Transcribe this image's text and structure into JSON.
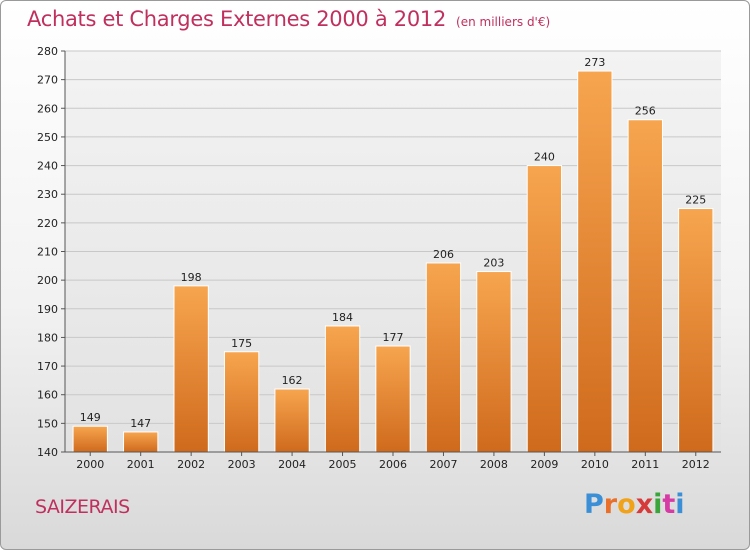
{
  "header": {
    "title": "Achats et Charges Externes 2000 à 2012",
    "subtitle": "(en milliers d'€)"
  },
  "footer": {
    "city": "SAIZERAIS",
    "logo": {
      "letters": [
        "P",
        "r",
        "o",
        "x",
        "i",
        "t",
        "i"
      ],
      "colors": [
        "#3a8fd6",
        "#e8702a",
        "#f0a21a",
        "#d63a3a",
        "#3aa53a",
        "#d63aa5",
        "#3a8fd6"
      ]
    }
  },
  "chart_data": {
    "type": "bar",
    "categories": [
      "2000",
      "2001",
      "2002",
      "2003",
      "2004",
      "2005",
      "2006",
      "2007",
      "2008",
      "2009",
      "2010",
      "2011",
      "2012"
    ],
    "values": [
      149,
      147,
      198,
      175,
      162,
      184,
      177,
      206,
      203,
      240,
      273,
      256,
      225
    ],
    "value_labels": [
      "149",
      "147",
      "198",
      "175",
      "162",
      "184",
      "177",
      "206",
      "203",
      "240",
      "273",
      "256",
      "225"
    ],
    "yticks": [
      "140",
      "150",
      "160",
      "170",
      "180",
      "190",
      "200",
      "210",
      "220",
      "230",
      "240",
      "250",
      "260",
      "270",
      "280"
    ],
    "ylim": [
      140,
      280
    ],
    "grid": true,
    "bar_color_top": "#f7a54f",
    "bar_color_bottom": "#cf6a1c"
  }
}
